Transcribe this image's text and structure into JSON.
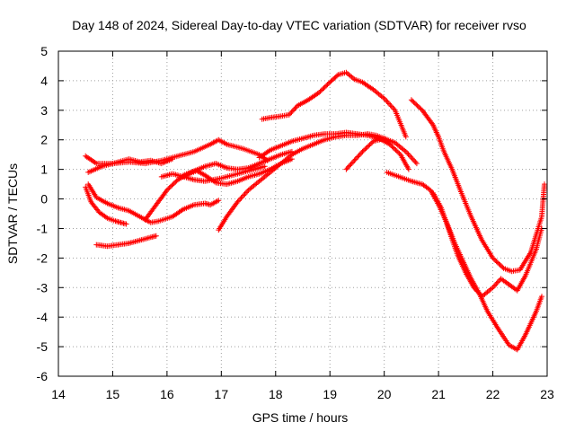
{
  "chart_data": {
    "type": "scatter",
    "title": "Day 148 of 2024, Sidereal Day-to-day VTEC variation (SDTVAR) for receiver rvso",
    "xlabel": "GPS time / hours",
    "ylabel": "SDTVAR / TECUs",
    "xlim": [
      14,
      23
    ],
    "ylim": [
      -6,
      5
    ],
    "xticks": [
      14,
      15,
      16,
      17,
      18,
      19,
      20,
      21,
      22,
      23
    ],
    "yticks": [
      -6,
      -5,
      -4,
      -3,
      -2,
      -1,
      0,
      1,
      2,
      3,
      4,
      5
    ],
    "grid": true,
    "marker": "+",
    "color": "#ff0000",
    "series": [
      {
        "name": "s1",
        "x": [
          14.55,
          14.7,
          14.9,
          15.1,
          15.3,
          15.5,
          15.7,
          15.85,
          16.1,
          16.3,
          16.5,
          16.7,
          16.8,
          16.95
        ],
        "y": [
          0.5,
          0.05,
          -0.15,
          -0.3,
          -0.4,
          -0.6,
          -0.8,
          -0.75,
          -0.6,
          -0.35,
          -0.2,
          -0.15,
          -0.2,
          -0.05
        ]
      },
      {
        "name": "s2",
        "x": [
          14.5,
          14.6,
          14.75,
          14.9,
          15.05,
          15.15,
          15.25
        ],
        "y": [
          0.4,
          -0.1,
          -0.45,
          -0.65,
          -0.75,
          -0.8,
          -0.85
        ]
      },
      {
        "name": "s3",
        "x": [
          14.55,
          14.8,
          15.0,
          15.3,
          15.5,
          15.7,
          15.9,
          16.1
        ],
        "y": [
          0.9,
          1.1,
          1.2,
          1.35,
          1.25,
          1.3,
          1.2,
          1.35
        ]
      },
      {
        "name": "s4",
        "x": [
          14.5,
          14.7,
          15.0,
          15.3,
          15.6,
          15.9,
          16.2,
          16.5,
          16.8,
          16.95,
          17.1,
          17.4,
          17.7,
          17.85
        ],
        "y": [
          1.45,
          1.2,
          1.2,
          1.25,
          1.2,
          1.3,
          1.45,
          1.6,
          1.85,
          2.0,
          1.85,
          1.7,
          1.5,
          1.3
        ]
      },
      {
        "name": "s5",
        "x": [
          14.7,
          14.9,
          15.1,
          15.3,
          15.5,
          15.7,
          15.8
        ],
        "y": [
          -1.55,
          -1.6,
          -1.55,
          -1.5,
          -1.4,
          -1.3,
          -1.25
        ]
      },
      {
        "name": "s6",
        "x": [
          15.6,
          15.8,
          16.0,
          16.2,
          16.4,
          16.55,
          16.7,
          16.9,
          17.1,
          17.3,
          17.5,
          17.7,
          17.9,
          18.1,
          18.3
        ],
        "y": [
          -0.7,
          -0.2,
          0.3,
          0.65,
          0.85,
          0.95,
          0.8,
          0.55,
          0.5,
          0.6,
          0.75,
          0.85,
          1.0,
          1.2,
          1.35
        ]
      },
      {
        "name": "s7",
        "x": [
          15.9,
          16.1,
          16.3,
          16.5,
          16.7,
          17.0,
          17.3,
          17.6,
          17.8
        ],
        "y": [
          0.75,
          0.85,
          0.75,
          0.65,
          0.6,
          0.7,
          0.85,
          1.0,
          1.1
        ]
      },
      {
        "name": "s8",
        "x": [
          16.3,
          16.5,
          16.7,
          16.9,
          17.1,
          17.3,
          17.5,
          17.7,
          17.9,
          18.1,
          18.3
        ],
        "y": [
          0.8,
          0.95,
          1.1,
          1.2,
          1.05,
          1.0,
          1.05,
          1.2,
          1.35,
          1.5,
          1.6
        ]
      },
      {
        "name": "s9",
        "x": [
          16.95,
          17.1,
          17.3,
          17.5,
          17.7,
          17.9,
          18.1,
          18.3,
          18.5,
          18.7,
          18.9,
          19.1,
          19.3,
          19.5,
          19.7,
          19.85,
          20.0
        ],
        "y": [
          -1.05,
          -0.6,
          -0.1,
          0.3,
          0.6,
          0.9,
          1.2,
          1.5,
          1.7,
          1.85,
          2.0,
          2.1,
          2.15,
          2.15,
          2.2,
          2.15,
          2.05
        ]
      },
      {
        "name": "s10",
        "x": [
          17.7,
          17.9,
          18.1,
          18.3,
          18.5,
          18.7,
          18.9,
          19.1,
          19.3,
          19.5,
          19.7,
          19.9,
          20.1,
          20.3,
          20.45
        ],
        "y": [
          1.4,
          1.65,
          1.8,
          1.95,
          2.05,
          2.15,
          2.2,
          2.2,
          2.25,
          2.2,
          2.15,
          2.05,
          1.85,
          1.5,
          1.0
        ]
      },
      {
        "name": "s11",
        "x": [
          17.75,
          17.9,
          18.1,
          18.25,
          18.4,
          18.6,
          18.8,
          19.0,
          19.15,
          19.3,
          19.45,
          19.6,
          19.8,
          20.0,
          20.2,
          20.4
        ],
        "y": [
          2.7,
          2.75,
          2.8,
          2.85,
          3.15,
          3.35,
          3.6,
          3.95,
          4.2,
          4.28,
          4.05,
          3.95,
          3.7,
          3.4,
          3.0,
          2.1
        ]
      },
      {
        "name": "s12",
        "x": [
          19.3,
          19.45,
          19.6,
          19.8,
          20.0,
          20.2,
          20.4,
          20.6
        ],
        "y": [
          1.0,
          1.3,
          1.6,
          1.95,
          2.05,
          1.9,
          1.6,
          1.2
        ]
      },
      {
        "name": "s13",
        "x": [
          20.05,
          20.2,
          20.35,
          20.5,
          20.7,
          20.85,
          21.0,
          21.15,
          21.3,
          21.45,
          21.6,
          21.75,
          21.9,
          22.1,
          22.3,
          22.45,
          22.6,
          22.8,
          22.9
        ],
        "y": [
          0.9,
          0.8,
          0.7,
          0.6,
          0.5,
          0.3,
          -0.2,
          -0.8,
          -1.5,
          -2.1,
          -2.7,
          -3.2,
          -3.8,
          -4.4,
          -4.95,
          -5.1,
          -4.6,
          -3.8,
          -3.3
        ]
      },
      {
        "name": "s14",
        "x": [
          20.5,
          20.7,
          20.9,
          21.0,
          21.1,
          21.25,
          21.4,
          21.6,
          21.8,
          22.0,
          22.2,
          22.35,
          22.5,
          22.7,
          22.9,
          22.95
        ],
        "y": [
          3.35,
          3.0,
          2.5,
          2.1,
          1.6,
          1.0,
          0.3,
          -0.6,
          -1.4,
          -2.0,
          -2.35,
          -2.45,
          -2.4,
          -1.8,
          -0.6,
          0.5
        ]
      },
      {
        "name": "s15",
        "x": [
          20.9,
          21.05,
          21.2,
          21.35,
          21.5,
          21.65,
          21.8,
          22.0,
          22.15,
          22.3,
          22.45,
          22.6,
          22.8,
          22.9
        ],
        "y": [
          0.2,
          -0.3,
          -1.1,
          -1.9,
          -2.5,
          -3.0,
          -3.3,
          -3.0,
          -2.7,
          -2.9,
          -3.1,
          -2.6,
          -1.7,
          -1.0
        ]
      }
    ]
  }
}
